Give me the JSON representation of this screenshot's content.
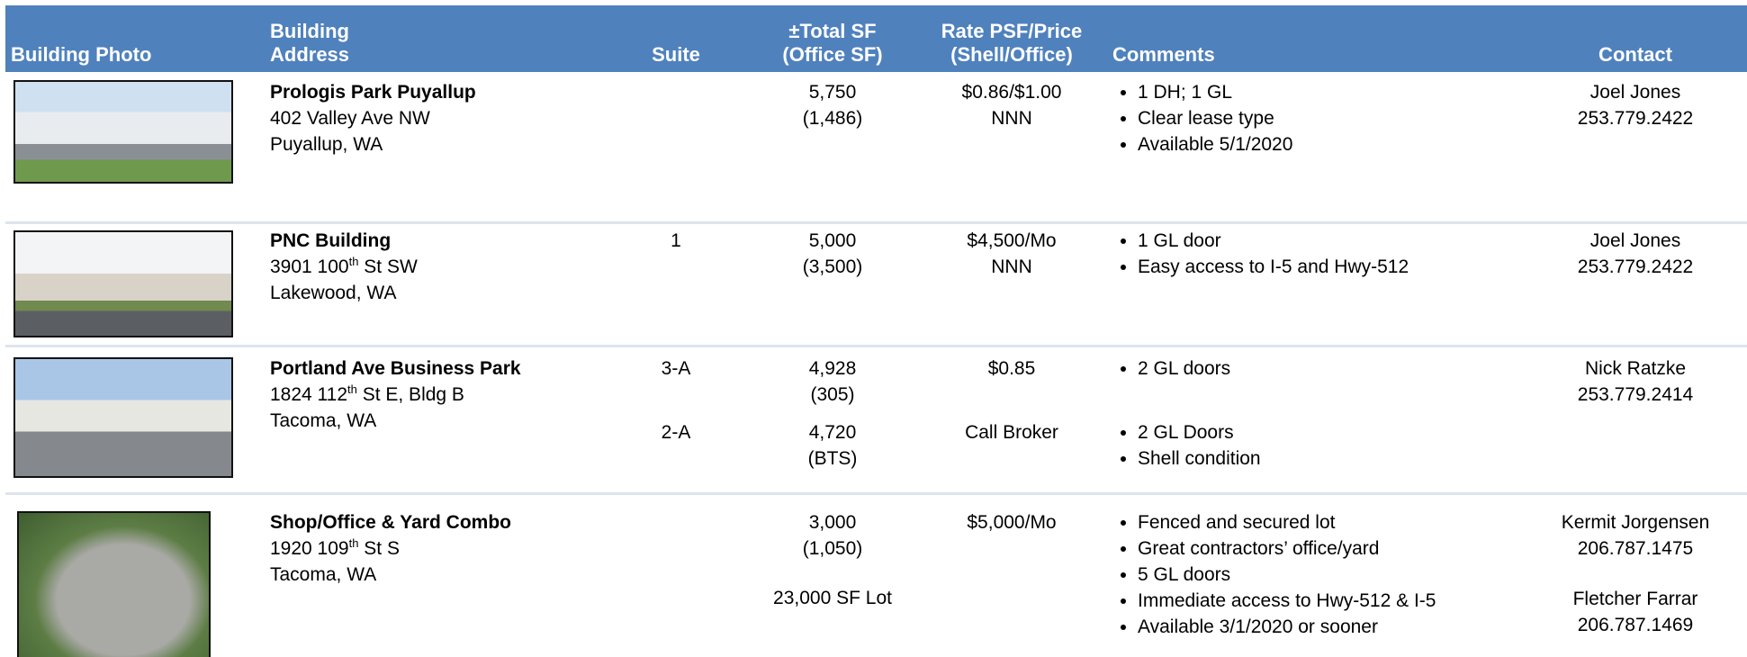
{
  "header": {
    "columns": [
      [
        "Building Photo"
      ],
      [
        "Building",
        "Address"
      ],
      [
        "Suite"
      ],
      [
        "±Total SF",
        "(Office SF)"
      ],
      [
        "Rate PSF/Price",
        "(Shell/Office)"
      ],
      [
        "Comments"
      ],
      [
        "Contact"
      ]
    ]
  },
  "listings": [
    {
      "name": "Prologis Park Puyallup",
      "address": [
        "402 Valley Ave NW",
        "Puyallup, WA"
      ],
      "units": [
        {
          "sf": [
            "5,750",
            "(1,486)"
          ],
          "rate": [
            "$0.86/$1.00",
            "NNN"
          ],
          "comments": [
            "1 DH; 1 GL",
            "Clear lease type",
            "Available 5/1/2020"
          ]
        }
      ],
      "contacts": [
        {
          "name": "Joel Jones",
          "phone": "253.779.2422"
        }
      ]
    },
    {
      "name": "PNC Building",
      "address": [
        {
          "number": "3901 100",
          "ordinal": "th",
          "street": " St SW"
        },
        "Lakewood, WA"
      ],
      "units": [
        {
          "suite": "1",
          "sf": [
            "5,000",
            "(3,500)"
          ],
          "rate": [
            "$4,500/Mo",
            "NNN"
          ],
          "comments": [
            "1 GL door",
            "Easy access to I-5 and Hwy-512"
          ]
        }
      ],
      "contacts": [
        {
          "name": "Joel Jones",
          "phone": "253.779.2422"
        }
      ]
    },
    {
      "name": "Portland Ave Business Park",
      "address": [
        {
          "number": "1824 112",
          "ordinal": "th",
          "street": " St E, Bldg B"
        },
        "Tacoma, WA"
      ],
      "units": [
        {
          "suite": "3-A",
          "sf": [
            "4,928",
            "(305)"
          ],
          "rate": [
            "$0.85"
          ],
          "comments": [
            "2 GL doors"
          ]
        },
        {
          "suite": "2-A",
          "sf": [
            "4,720",
            "(BTS)"
          ],
          "rate": [
            "Call Broker"
          ],
          "comments": [
            "2 GL Doors",
            "Shell condition"
          ]
        }
      ],
      "contacts": [
        {
          "name": "Nick Ratzke",
          "phone": "253.779.2414"
        }
      ]
    },
    {
      "name": "Shop/Office & Yard Combo",
      "address": [
        {
          "number": "1920 109",
          "ordinal": "th",
          "street": " St S"
        },
        "Tacoma, WA"
      ],
      "units": [
        {
          "sf": [
            "3,000",
            "(1,050)"
          ],
          "lot": "23,000 SF Lot",
          "rate": [
            "$5,000/Mo"
          ],
          "comments": [
            "Fenced and secured lot",
            "Great contractors’ office/yard",
            "5 GL doors",
            "Immediate access to Hwy-512 & I-5",
            "Available 3/1/2020 or sooner"
          ]
        }
      ],
      "contacts": [
        {
          "name": "Kermit Jorgensen",
          "phone": "206.787.1475"
        },
        {
          "name": "Fletcher Farrar",
          "phone": "206.787.1469"
        }
      ]
    }
  ]
}
